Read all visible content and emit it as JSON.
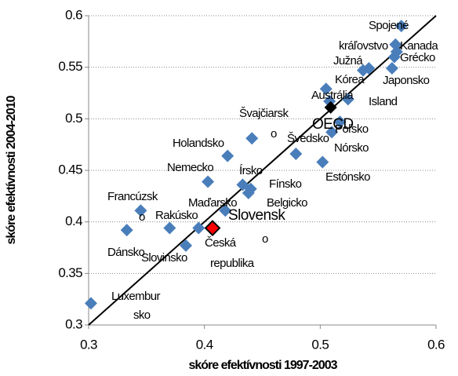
{
  "chart_data": {
    "type": "scatter",
    "xlabel": "skóre efektívnosti 1997-2003",
    "ylabel": "skóre efektívnosti 2004-2010",
    "xlim": [
      0.3,
      0.6
    ],
    "xticks": [
      0.3,
      0.4,
      0.5,
      0.6
    ],
    "ylim": [
      0.3,
      0.6
    ],
    "yticks": [
      0.3,
      0.35,
      0.4,
      0.45,
      0.5,
      0.55,
      0.6
    ],
    "grid": true,
    "series": [
      {
        "color": "#4a7ebb",
        "x": [
          0.302,
          0.333,
          0.345,
          0.37,
          0.384,
          0.395,
          0.403,
          0.418,
          0.42,
          0.433,
          0.438,
          0.44,
          0.441,
          0.479,
          0.502,
          0.505,
          0.51,
          0.508,
          0.524,
          0.517,
          0.537,
          0.542,
          0.562,
          0.564,
          0.566,
          0.57,
          0.565
        ],
        "values": [
          0.321,
          0.392,
          0.411,
          0.394,
          0.377,
          0.394,
          0.439,
          0.411,
          0.464,
          0.436,
          0.428,
          0.432,
          0.481,
          0.466,
          0.458,
          0.529,
          0.487,
          0.517,
          0.519,
          0.497,
          0.547,
          0.549,
          0.549,
          0.56,
          0.565,
          0.59,
          0.572
        ]
      },
      {
        "color": "#000000",
        "x": [
          0.509
        ],
        "values": [
          0.511
        ]
      },
      {
        "color": "#ff0000",
        "edgecolor": "#000000",
        "x": [
          0.407
        ],
        "values": [
          0.394
        ]
      }
    ],
    "annotations": [
      "Spojené",
      "kráľovstvo",
      "Kanada",
      "Južná",
      "Grécko",
      "Kórea",
      "Japonsko",
      "Austrália",
      "Island",
      "Švajčiarsk",
      "OECD",
      "Poľsko",
      "o",
      "Švédsko",
      "Nórsko",
      "Holandsko",
      "Nemecko",
      "Írsko",
      "Estónsko",
      "Fínsko",
      "Francúzsk",
      "Maďarsko",
      "Belgicko",
      "o",
      "Rakúsko",
      "Slovensk",
      "o",
      "Česká",
      "Dánsko",
      "Slovinsko",
      "republika",
      "Luxembur",
      "sko"
    ]
  }
}
